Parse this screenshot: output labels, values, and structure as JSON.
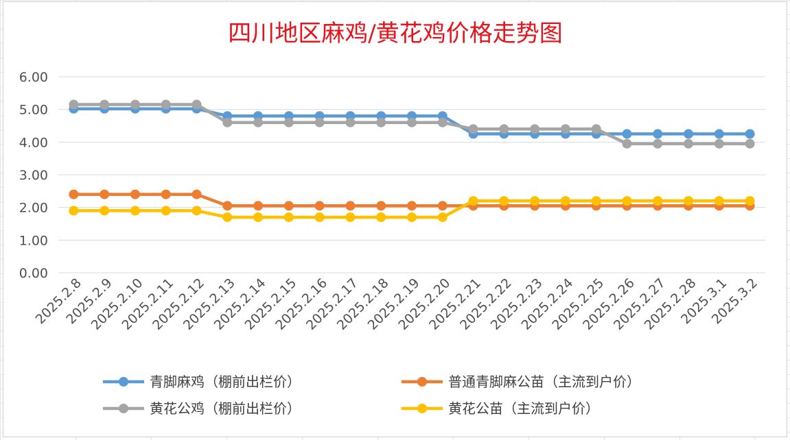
{
  "chart_data": {
    "type": "line",
    "title": "四川地区麻鸡/黄花鸡价格走势图",
    "xlabel": "",
    "ylabel": "",
    "ylim": [
      0,
      6
    ],
    "yticks": [
      "0.00",
      "1.00",
      "2.00",
      "3.00",
      "4.00",
      "5.00",
      "6.00"
    ],
    "grid": true,
    "legend_position": "bottom",
    "categories": [
      "2025.2.8",
      "2025.2.9",
      "2025.2.10",
      "2025.2.11",
      "2025.2.12",
      "2025.2.13",
      "2025.2.14",
      "2025.2.15",
      "2025.2.16",
      "2025.2.17",
      "2025.2.18",
      "2025.2.19",
      "2025.2.20",
      "2025.2.21",
      "2025.2.22",
      "2025.2.23",
      "2025.2.24",
      "2025.2.25",
      "2025.2.26",
      "2025.2.27",
      "2025.2.28",
      "2025.3.1",
      "2025.3.2"
    ],
    "series": [
      {
        "name": "青脚麻鸡（棚前出栏价）",
        "color": "#5b9bd5",
        "values": [
          5.02,
          5.02,
          5.02,
          5.02,
          5.02,
          4.8,
          4.8,
          4.8,
          4.8,
          4.8,
          4.8,
          4.8,
          4.8,
          4.25,
          4.25,
          4.25,
          4.25,
          4.25,
          4.25,
          4.25,
          4.25,
          4.25,
          4.25
        ]
      },
      {
        "name": "普通青脚麻公苗（主流到户价）",
        "color": "#ed7d31",
        "values": [
          2.4,
          2.4,
          2.4,
          2.4,
          2.4,
          2.05,
          2.05,
          2.05,
          2.05,
          2.05,
          2.05,
          2.05,
          2.05,
          2.05,
          2.05,
          2.05,
          2.05,
          2.05,
          2.05,
          2.05,
          2.05,
          2.05,
          2.05
        ]
      },
      {
        "name": "黄花公鸡（棚前出栏价）",
        "color": "#a5a5a5",
        "values": [
          5.15,
          5.15,
          5.15,
          5.15,
          5.15,
          4.6,
          4.6,
          4.6,
          4.6,
          4.6,
          4.6,
          4.6,
          4.6,
          4.4,
          4.4,
          4.4,
          4.4,
          4.4,
          3.95,
          3.95,
          3.95,
          3.95,
          3.95
        ]
      },
      {
        "name": "黄花公苗（主流到户价）",
        "color": "#ffc000",
        "values": [
          1.9,
          1.9,
          1.9,
          1.9,
          1.9,
          1.7,
          1.7,
          1.7,
          1.7,
          1.7,
          1.7,
          1.7,
          1.7,
          2.2,
          2.2,
          2.2,
          2.2,
          2.2,
          2.2,
          2.2,
          2.2,
          2.2,
          2.2
        ]
      }
    ]
  }
}
